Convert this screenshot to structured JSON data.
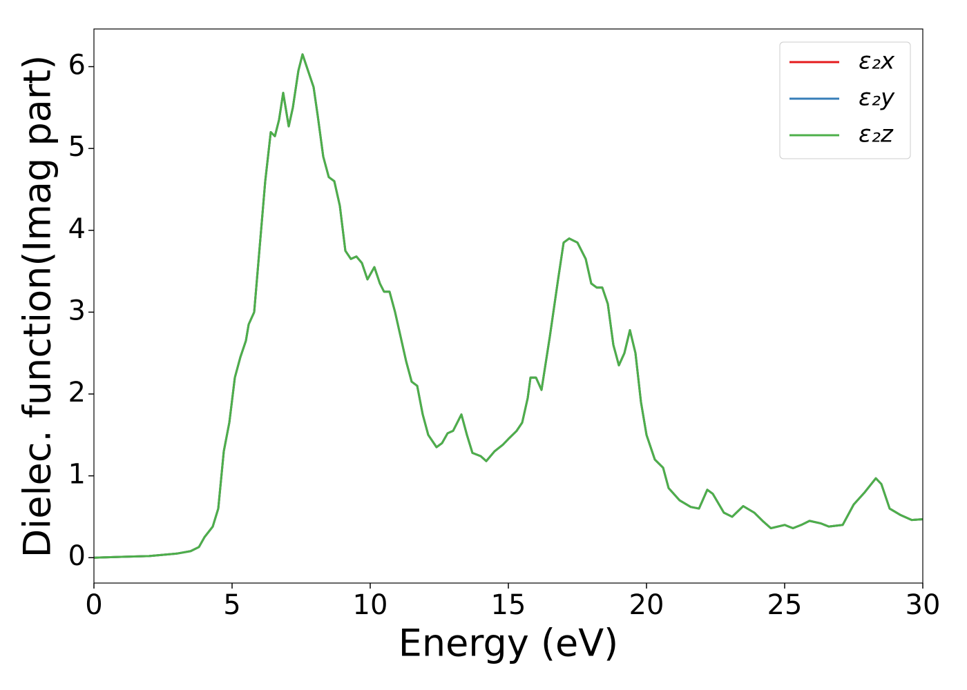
{
  "chart_data": {
    "type": "line",
    "xlabel": "Energy (eV)",
    "ylabel": "Dielec. function(Imag part)",
    "xlim": [
      0,
      30
    ],
    "ylim": [
      -0.31,
      6.46
    ],
    "xticks": [
      0,
      5,
      10,
      15,
      20,
      25,
      30
    ],
    "yticks": [
      0,
      1,
      2,
      3,
      4,
      5,
      6
    ],
    "legend": "upper right",
    "x": [
      0,
      1,
      2,
      3,
      3.5,
      3.8,
      4.0,
      4.3,
      4.5,
      4.7,
      4.9,
      5.1,
      5.3,
      5.5,
      5.6,
      5.8,
      6.0,
      6.2,
      6.4,
      6.55,
      6.7,
      6.85,
      7.05,
      7.2,
      7.4,
      7.55,
      7.75,
      7.95,
      8.1,
      8.3,
      8.5,
      8.7,
      8.9,
      9.1,
      9.3,
      9.5,
      9.7,
      9.9,
      10.15,
      10.35,
      10.5,
      10.7,
      10.9,
      11.1,
      11.3,
      11.5,
      11.7,
      11.9,
      12.1,
      12.4,
      12.6,
      12.8,
      13.0,
      13.3,
      13.5,
      13.7,
      14.0,
      14.2,
      14.5,
      14.8,
      15.0,
      15.3,
      15.5,
      15.7,
      15.8,
      16.0,
      16.2,
      16.5,
      16.8,
      17.0,
      17.2,
      17.5,
      17.8,
      18.0,
      18.2,
      18.4,
      18.6,
      18.8,
      19.0,
      19.2,
      19.4,
      19.6,
      19.8,
      20.0,
      20.3,
      20.6,
      20.8,
      21.2,
      21.6,
      21.9,
      22.2,
      22.4,
      22.8,
      23.1,
      23.5,
      23.9,
      24.2,
      24.5,
      25.0,
      25.3,
      25.6,
      25.9,
      26.3,
      26.6,
      27.1,
      27.5,
      27.9,
      28.3,
      28.5,
      28.8,
      29.2,
      29.6,
      30
    ],
    "series": [
      {
        "name": "ε₂x",
        "color": "#e41a1c",
        "values": [
          0,
          0.01,
          0.02,
          0.05,
          0.08,
          0.13,
          0.25,
          0.38,
          0.6,
          1.3,
          1.65,
          2.2,
          2.45,
          2.65,
          2.85,
          3.0,
          3.8,
          4.6,
          5.2,
          5.15,
          5.35,
          5.68,
          5.27,
          5.5,
          5.95,
          6.15,
          5.95,
          5.75,
          5.4,
          4.9,
          4.65,
          4.6,
          4.3,
          3.75,
          3.65,
          3.68,
          3.6,
          3.4,
          3.55,
          3.35,
          3.25,
          3.25,
          3.0,
          2.7,
          2.4,
          2.15,
          2.1,
          1.75,
          1.5,
          1.35,
          1.4,
          1.52,
          1.55,
          1.75,
          1.5,
          1.28,
          1.24,
          1.18,
          1.3,
          1.38,
          1.45,
          1.55,
          1.65,
          1.95,
          2.2,
          2.2,
          2.05,
          2.7,
          3.4,
          3.85,
          3.9,
          3.85,
          3.65,
          3.35,
          3.3,
          3.3,
          3.1,
          2.6,
          2.35,
          2.5,
          2.78,
          2.5,
          1.9,
          1.5,
          1.2,
          1.1,
          0.85,
          0.7,
          0.62,
          0.6,
          0.83,
          0.78,
          0.55,
          0.5,
          0.63,
          0.55,
          0.45,
          0.36,
          0.4,
          0.36,
          0.4,
          0.45,
          0.42,
          0.38,
          0.4,
          0.65,
          0.8,
          0.97,
          0.9,
          0.6,
          0.52,
          0.46,
          0.47
        ]
      },
      {
        "name": "ε₂y",
        "color": "#377eb8",
        "values": [
          0,
          0.01,
          0.02,
          0.05,
          0.08,
          0.13,
          0.25,
          0.38,
          0.6,
          1.3,
          1.65,
          2.2,
          2.45,
          2.65,
          2.85,
          3.0,
          3.8,
          4.6,
          5.2,
          5.15,
          5.35,
          5.68,
          5.27,
          5.5,
          5.95,
          6.15,
          5.95,
          5.75,
          5.4,
          4.9,
          4.65,
          4.6,
          4.3,
          3.75,
          3.65,
          3.68,
          3.6,
          3.4,
          3.55,
          3.35,
          3.25,
          3.25,
          3.0,
          2.7,
          2.4,
          2.15,
          2.1,
          1.75,
          1.5,
          1.35,
          1.4,
          1.52,
          1.55,
          1.75,
          1.5,
          1.28,
          1.24,
          1.18,
          1.3,
          1.38,
          1.45,
          1.55,
          1.65,
          1.95,
          2.2,
          2.2,
          2.05,
          2.7,
          3.4,
          3.85,
          3.9,
          3.85,
          3.65,
          3.35,
          3.3,
          3.3,
          3.1,
          2.6,
          2.35,
          2.5,
          2.78,
          2.5,
          1.9,
          1.5,
          1.2,
          1.1,
          0.85,
          0.7,
          0.62,
          0.6,
          0.83,
          0.78,
          0.55,
          0.5,
          0.63,
          0.55,
          0.45,
          0.36,
          0.4,
          0.36,
          0.4,
          0.45,
          0.42,
          0.38,
          0.4,
          0.65,
          0.8,
          0.97,
          0.9,
          0.6,
          0.52,
          0.46,
          0.47
        ]
      },
      {
        "name": "ε₂z",
        "color": "#4daf4a",
        "values": [
          0,
          0.01,
          0.02,
          0.05,
          0.08,
          0.13,
          0.25,
          0.38,
          0.6,
          1.3,
          1.65,
          2.2,
          2.45,
          2.65,
          2.85,
          3.0,
          3.8,
          4.6,
          5.2,
          5.15,
          5.35,
          5.68,
          5.27,
          5.5,
          5.95,
          6.15,
          5.95,
          5.75,
          5.4,
          4.9,
          4.65,
          4.6,
          4.3,
          3.75,
          3.65,
          3.68,
          3.6,
          3.4,
          3.55,
          3.35,
          3.25,
          3.25,
          3.0,
          2.7,
          2.4,
          2.15,
          2.1,
          1.75,
          1.5,
          1.35,
          1.4,
          1.52,
          1.55,
          1.75,
          1.5,
          1.28,
          1.24,
          1.18,
          1.3,
          1.38,
          1.45,
          1.55,
          1.65,
          1.95,
          2.2,
          2.2,
          2.05,
          2.7,
          3.4,
          3.85,
          3.9,
          3.85,
          3.65,
          3.35,
          3.3,
          3.3,
          3.1,
          2.6,
          2.35,
          2.5,
          2.78,
          2.5,
          1.9,
          1.5,
          1.2,
          1.1,
          0.85,
          0.7,
          0.62,
          0.6,
          0.83,
          0.78,
          0.55,
          0.5,
          0.63,
          0.55,
          0.45,
          0.36,
          0.4,
          0.36,
          0.4,
          0.45,
          0.42,
          0.38,
          0.4,
          0.65,
          0.8,
          0.97,
          0.9,
          0.6,
          0.52,
          0.46,
          0.47
        ]
      }
    ]
  }
}
